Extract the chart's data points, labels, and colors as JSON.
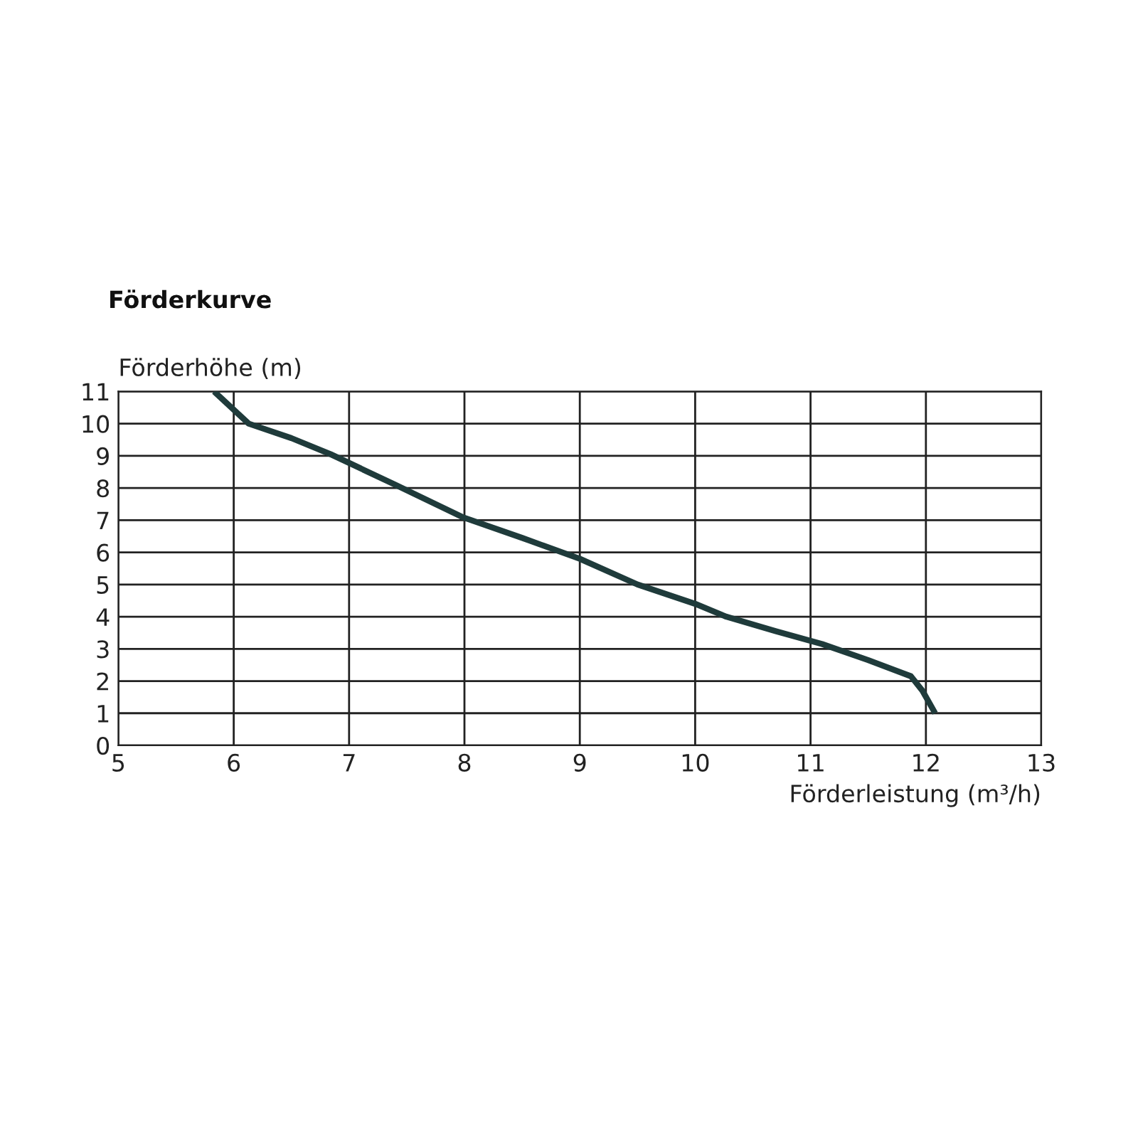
{
  "chart_data": {
    "type": "line",
    "title": "Förderkurve",
    "xlabel": "Förderleistung (m³/h)",
    "ylabel": "Förderhöhe (m)",
    "series": [
      {
        "color": "#1f3b3b",
        "x": [
          5.83,
          6.13,
          6.5,
          6.84,
          7.4,
          7.98,
          8.5,
          9.0,
          9.5,
          10.0,
          10.27,
          10.7,
          11.1,
          11.5,
          11.87,
          11.97,
          12.08
        ],
        "values": [
          11,
          10,
          9.55,
          9.05,
          8.1,
          7.1,
          6.45,
          5.8,
          5.0,
          4.4,
          4.0,
          3.55,
          3.15,
          2.65,
          2.15,
          1.7,
          1.0
        ]
      }
    ],
    "xlim": [
      5,
      13
    ],
    "xticks": [
      5,
      6,
      7,
      8,
      9,
      10,
      11,
      12,
      13
    ],
    "ylim": [
      0,
      11
    ],
    "yticks": [
      0,
      1,
      2,
      3,
      4,
      5,
      6,
      7,
      8,
      9,
      10,
      11
    ],
    "grid": true,
    "legend": false,
    "marker": "none",
    "line_style": "solid"
  }
}
